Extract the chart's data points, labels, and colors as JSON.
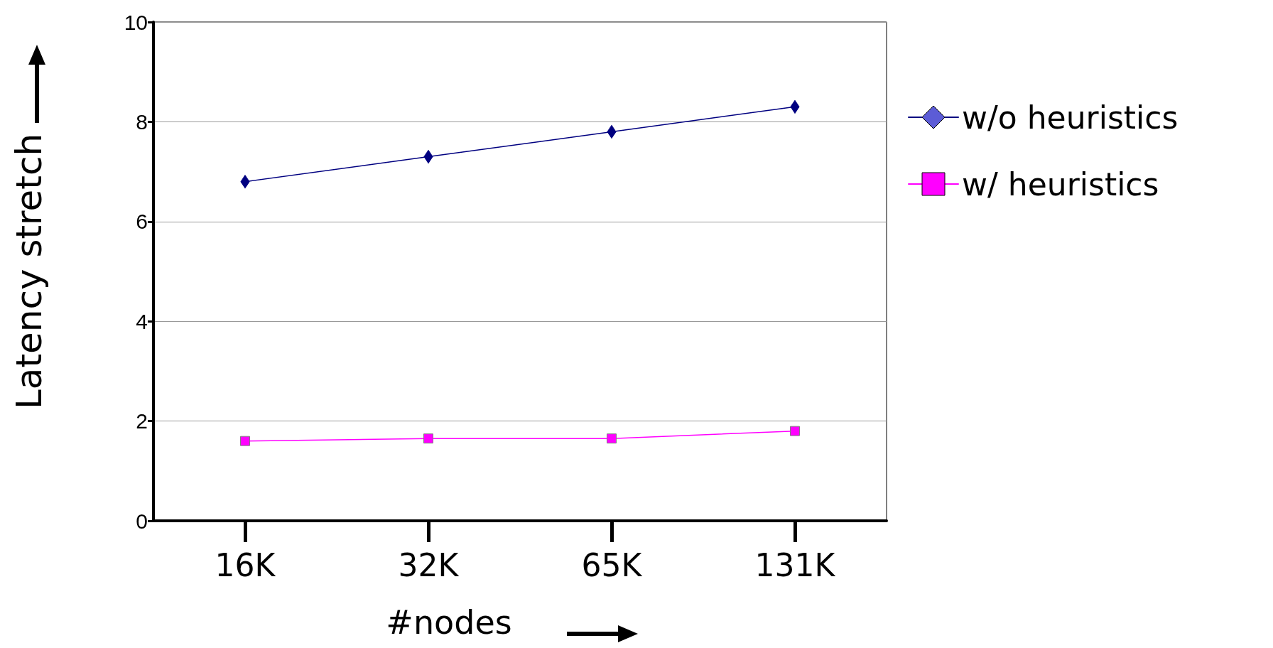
{
  "chart_data": {
    "type": "line",
    "xlabel": "#nodes",
    "ylabel": "Latency stretch",
    "categories": [
      "16K",
      "32K",
      "65K",
      "131K"
    ],
    "series": [
      {
        "name": "w/o heuristics",
        "color": "#000080",
        "marker": "diamond",
        "values": [
          6.8,
          7.3,
          7.8,
          8.3
        ]
      },
      {
        "name": "w/ heuristics",
        "color": "#ff00ff",
        "marker": "square",
        "values": [
          1.6,
          1.65,
          1.65,
          1.8
        ]
      }
    ],
    "ylim": [
      0,
      10
    ],
    "yticks": [
      0,
      2,
      4,
      6,
      8,
      10
    ],
    "grid": "y",
    "legend": "right",
    "line_style": "solid"
  }
}
